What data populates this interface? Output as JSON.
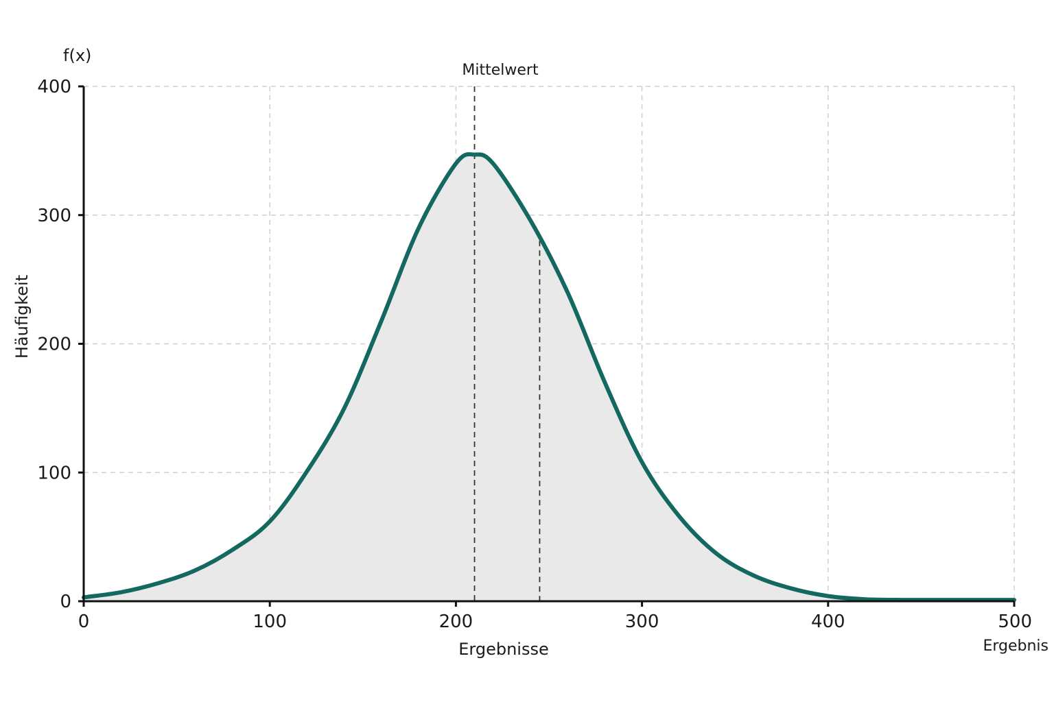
{
  "chart_data": {
    "type": "area",
    "ylabel": "Häufigkeit",
    "y_function_label": "f(x)",
    "xlabel": "Ergebnisse",
    "x_end_label": "Ergebnis",
    "xlim": [
      0,
      500
    ],
    "ylim": [
      0,
      400
    ],
    "x_ticks": [
      0,
      100,
      200,
      300,
      400,
      500
    ],
    "y_ticks": [
      0,
      100,
      200,
      300,
      400
    ],
    "grid": true,
    "reference_lines": [
      {
        "x": 210,
        "label": "Mittelwert"
      },
      {
        "x": 245,
        "label": ""
      }
    ],
    "series": [
      {
        "x": [
          0,
          20,
          40,
          60,
          80,
          100,
          120,
          140,
          160,
          180,
          200,
          210,
          220,
          240,
          260,
          280,
          300,
          320,
          340,
          360,
          380,
          400,
          420,
          440,
          460,
          480,
          500
        ],
        "values": [
          3,
          7,
          14,
          24,
          40,
          62,
          101,
          150,
          218,
          290,
          340,
          347,
          340,
          296,
          240,
          170,
          108,
          66,
          37,
          20,
          10,
          4,
          1.5,
          1,
          1,
          1,
          1
        ]
      }
    ]
  },
  "colors": {
    "curve": "#136860",
    "fill": "#e9e9e9"
  }
}
